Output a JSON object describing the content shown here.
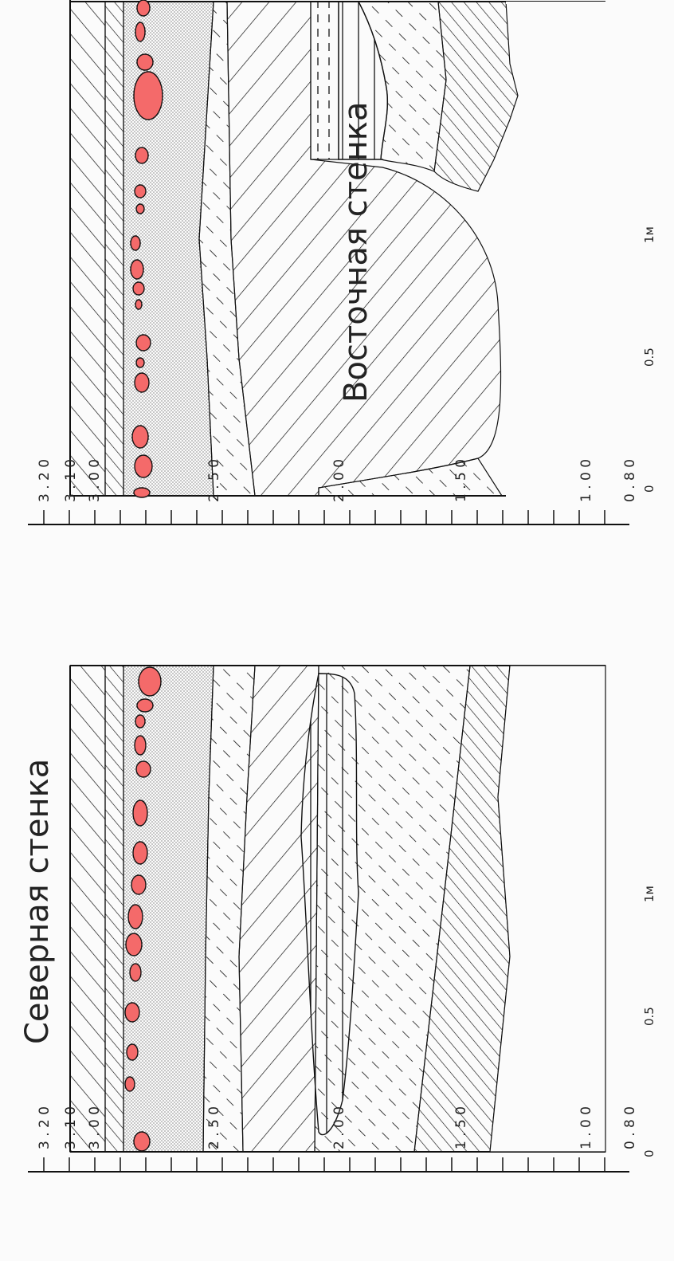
{
  "figure": {
    "north_wall": {
      "title": "Северная стенка",
      "vertical_scale": [
        "3.20",
        "3.10",
        "3.00",
        "2.50",
        "2.00",
        "1.50",
        "1.00",
        "0.80"
      ],
      "horizontal_scale": [
        "0",
        "0.5",
        "1м"
      ]
    },
    "east_wall": {
      "title": "Восточная стенка",
      "vertical_scale": [
        "3.20",
        "3.10",
        "3.00",
        "2.50",
        "2.00",
        "1.50",
        "1.00",
        "0.80"
      ],
      "horizontal_scale": [
        "0",
        "0.5",
        "1м"
      ]
    }
  },
  "colors": {
    "stone": "#f46a6a",
    "line": "#111111",
    "background": "#fbfbfb"
  }
}
